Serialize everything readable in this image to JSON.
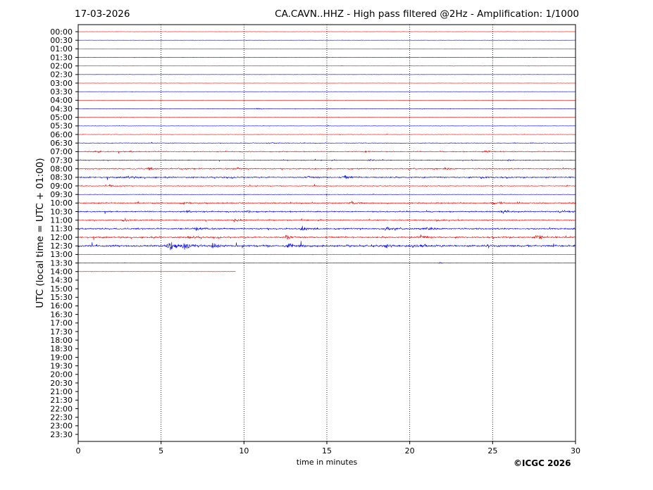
{
  "header": {
    "date": "17-03-2026",
    "title": "CA.CAVN..HHZ - High pass filtered @2Hz - Amplification: 1/1000"
  },
  "footer": {
    "credit": "©ICGC 2026"
  },
  "chart_data": {
    "type": "line",
    "title": "CA.CAVN..HHZ - High pass filtered @2Hz - Amplification: 1/1000",
    "xlabel": "time in minutes",
    "ylabel": "UTC (local time = UTC + 01:00)",
    "xlim": [
      0,
      30
    ],
    "xticks": [
      0,
      5,
      10,
      15,
      20,
      25,
      30
    ],
    "vertical_gridlines_at": [
      5,
      10,
      15,
      20,
      25
    ],
    "rows": [
      "00:00",
      "00:30",
      "01:00",
      "01:30",
      "02:00",
      "02:30",
      "03:00",
      "03:30",
      "04:00",
      "04:30",
      "05:00",
      "05:30",
      "06:00",
      "06:30",
      "07:00",
      "07:30",
      "08:00",
      "08:30",
      "09:00",
      "09:30",
      "10:00",
      "10:30",
      "11:00",
      "11:30",
      "12:00",
      "12:30",
      "13:00",
      "13:30",
      "14:00",
      "14:30",
      "15:00",
      "15:30",
      "16:00",
      "16:30",
      "17:00",
      "17:30",
      "18:00",
      "18:30",
      "19:00",
      "19:30",
      "20:00",
      "20:30",
      "21:00",
      "21:30",
      "22:00",
      "22:30",
      "23:00",
      "23:30"
    ],
    "series_colors": [
      "#ff0000",
      "#0000ff"
    ],
    "traces_recorded": 29,
    "last_trace_end_minute": 9.5,
    "activity_level": [
      0.3,
      0.3,
      0.3,
      0.3,
      0.3,
      0.3,
      0.3,
      0.3,
      0.3,
      0.6,
      0.4,
      0.4,
      0.5,
      0.8,
      1.2,
      1.0,
      1.6,
      1.8,
      1.0,
      0.6,
      1.6,
      1.6,
      1.4,
      2.0,
      2.0,
      2.6,
      0.4,
      0.4,
      0.3
    ],
    "events": [
      {
        "row": "04:30",
        "minute": 10.7,
        "amp": 1.2
      },
      {
        "row": "06:30",
        "minute": 11.5,
        "amp": 1.5
      },
      {
        "row": "07:00",
        "minute": 1.0,
        "amp": 2.2
      },
      {
        "row": "07:00",
        "minute": 3.0,
        "amp": 1.8
      },
      {
        "row": "07:00",
        "minute": 17.3,
        "amp": 2.0
      },
      {
        "row": "07:00",
        "minute": 24.5,
        "amp": 2.0
      },
      {
        "row": "07:30",
        "minute": 17.5,
        "amp": 1.8
      },
      {
        "row": "07:30",
        "minute": 25.9,
        "amp": 2.0
      },
      {
        "row": "08:00",
        "minute": 4.2,
        "amp": 2.5
      },
      {
        "row": "08:00",
        "minute": 6.0,
        "amp": 2.5
      },
      {
        "row": "08:00",
        "minute": 9.5,
        "amp": 2.0
      },
      {
        "row": "08:00",
        "minute": 22.1,
        "amp": 2.2
      },
      {
        "row": "08:30",
        "minute": 2.9,
        "amp": 2.5
      },
      {
        "row": "08:30",
        "minute": 13.8,
        "amp": 3.0
      },
      {
        "row": "08:30",
        "minute": 16.0,
        "amp": 3.5
      },
      {
        "row": "08:30",
        "minute": 24.3,
        "amp": 3.0
      },
      {
        "row": "09:00",
        "minute": 1.9,
        "amp": 2.0
      },
      {
        "row": "10:00",
        "minute": 6.3,
        "amp": 4.0
      },
      {
        "row": "10:00",
        "minute": 16.5,
        "amp": 3.0
      },
      {
        "row": "10:00",
        "minute": 25.0,
        "amp": 3.0
      },
      {
        "row": "10:30",
        "minute": 6.5,
        "amp": 3.5
      },
      {
        "row": "10:30",
        "minute": 10.2,
        "amp": 3.0
      },
      {
        "row": "10:30",
        "minute": 25.6,
        "amp": 4.0
      },
      {
        "row": "10:30",
        "minute": 29.0,
        "amp": 3.0
      },
      {
        "row": "11:00",
        "minute": 2.8,
        "amp": 4.0
      },
      {
        "row": "11:00",
        "minute": 9.4,
        "amp": 4.0
      },
      {
        "row": "11:00",
        "minute": 21.5,
        "amp": 3.0
      },
      {
        "row": "11:30",
        "minute": 7.0,
        "amp": 4.0
      },
      {
        "row": "11:30",
        "minute": 13.5,
        "amp": 5.0
      },
      {
        "row": "11:30",
        "minute": 18.5,
        "amp": 4.5
      },
      {
        "row": "11:30",
        "minute": 21.0,
        "amp": 4.5
      },
      {
        "row": "12:00",
        "minute": 6.6,
        "amp": 3.5
      },
      {
        "row": "12:00",
        "minute": 12.5,
        "amp": 5.0
      },
      {
        "row": "12:00",
        "minute": 20.6,
        "amp": 4.0
      },
      {
        "row": "12:00",
        "minute": 27.6,
        "amp": 5.5
      },
      {
        "row": "12:30",
        "minute": 5.45,
        "amp": 12.0
      },
      {
        "row": "12:30",
        "minute": 6.3,
        "amp": 8.0
      },
      {
        "row": "12:30",
        "minute": 8.0,
        "amp": 6.0
      },
      {
        "row": "12:30",
        "minute": 12.6,
        "amp": 4.5
      },
      {
        "row": "12:30",
        "minute": 18.5,
        "amp": 5.0
      },
      {
        "row": "12:30",
        "minute": 20.5,
        "amp": 4.0
      },
      {
        "row": "13:30",
        "minute": 21.8,
        "amp": 1.5
      }
    ]
  }
}
